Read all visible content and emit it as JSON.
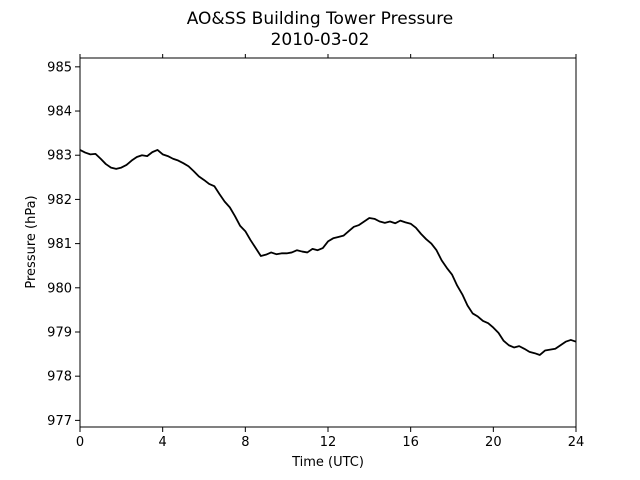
{
  "chart_data": {
    "type": "line",
    "title": "AO&SS Building Tower Pressure",
    "subtitle": "2010-03-02",
    "xlabel": "Time (UTC)",
    "ylabel": "Pressure (hPa)",
    "xlim": [
      0,
      24
    ],
    "ylim": [
      976.85,
      985.2
    ],
    "xticks": [
      0,
      4,
      8,
      12,
      16,
      20,
      24
    ],
    "yticks": [
      977,
      978,
      979,
      980,
      981,
      982,
      983,
      984,
      985
    ],
    "grid": false,
    "legend": "none",
    "series": [
      {
        "color": "#000000",
        "x": [
          0.0,
          0.25,
          0.5,
          0.75,
          1.0,
          1.25,
          1.5,
          1.75,
          2.0,
          2.25,
          2.5,
          2.75,
          3.0,
          3.25,
          3.5,
          3.75,
          4.0,
          4.25,
          4.5,
          4.75,
          5.0,
          5.25,
          5.5,
          5.75,
          6.0,
          6.25,
          6.5,
          6.75,
          7.0,
          7.25,
          7.5,
          7.75,
          8.0,
          8.25,
          8.5,
          8.75,
          9.0,
          9.25,
          9.5,
          9.75,
          10.0,
          10.25,
          10.5,
          10.75,
          11.0,
          11.25,
          11.5,
          11.75,
          12.0,
          12.25,
          12.5,
          12.75,
          13.0,
          13.25,
          13.5,
          13.75,
          14.0,
          14.25,
          14.5,
          14.75,
          15.0,
          15.25,
          15.5,
          15.75,
          16.0,
          16.25,
          16.5,
          16.75,
          17.0,
          17.25,
          17.5,
          17.75,
          18.0,
          18.25,
          18.5,
          18.75,
          19.0,
          19.25,
          19.5,
          19.75,
          20.0,
          20.25,
          20.5,
          20.75,
          21.0,
          21.25,
          21.5,
          21.75,
          22.0,
          22.25,
          22.5,
          22.75,
          23.0,
          23.25,
          23.5,
          23.75,
          24.0
        ],
        "y": [
          983.12,
          983.06,
          983.02,
          983.03,
          982.92,
          982.8,
          982.72,
          982.69,
          982.72,
          982.78,
          982.88,
          982.96,
          983.0,
          982.98,
          983.07,
          983.12,
          983.02,
          982.98,
          982.92,
          982.88,
          982.82,
          982.75,
          982.64,
          982.52,
          982.44,
          982.35,
          982.3,
          982.12,
          981.95,
          981.82,
          981.62,
          981.4,
          981.28,
          981.08,
          980.9,
          980.72,
          980.75,
          980.8,
          980.76,
          980.78,
          980.78,
          980.8,
          980.85,
          980.82,
          980.8,
          980.88,
          980.85,
          980.9,
          981.05,
          981.12,
          981.15,
          981.18,
          981.28,
          981.38,
          981.42,
          981.5,
          981.58,
          981.56,
          981.5,
          981.47,
          981.5,
          981.46,
          981.52,
          981.48,
          981.45,
          981.36,
          981.22,
          981.1,
          981.0,
          980.85,
          980.62,
          980.45,
          980.3,
          980.05,
          979.85,
          979.6,
          979.42,
          979.35,
          979.25,
          979.2,
          979.1,
          978.98,
          978.8,
          978.7,
          978.65,
          978.68,
          978.62,
          978.55,
          978.52,
          978.48,
          978.58,
          978.6,
          978.62,
          978.7,
          978.78,
          978.82,
          978.78
        ]
      }
    ]
  }
}
